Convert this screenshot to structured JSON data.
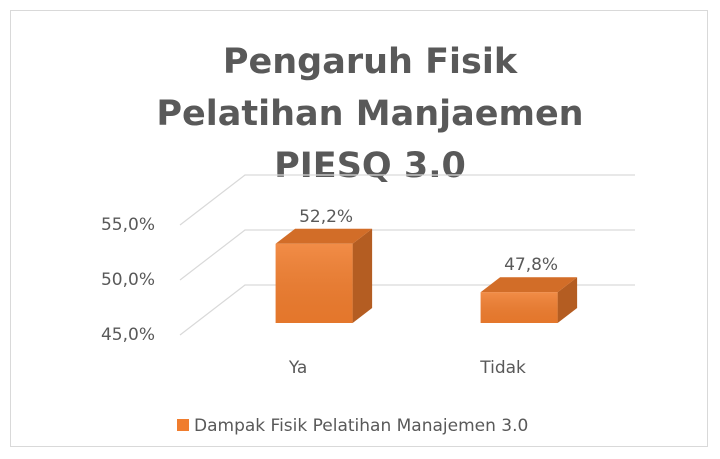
{
  "chart_data": {
    "type": "bar3d",
    "title": "Pengaruh Fisik Pelatihan Manjaemen PIESQ 3.0",
    "categories": [
      "Ya",
      "Tidak"
    ],
    "series": [
      {
        "name": "Dampak Fisik Pelatihan Manajemen 3.0",
        "color": "#f07d2e",
        "values": [
          52.2,
          47.8
        ],
        "value_labels": [
          "52,2%",
          "47,8%"
        ]
      }
    ],
    "ylim": [
      45,
      55
    ],
    "yticks": [
      {
        "value": 45,
        "label": "45,0%"
      },
      {
        "value": 50,
        "label": "50,0%"
      },
      {
        "value": 55,
        "label": "55,0%"
      }
    ],
    "grid": true,
    "legend": "bottom"
  }
}
